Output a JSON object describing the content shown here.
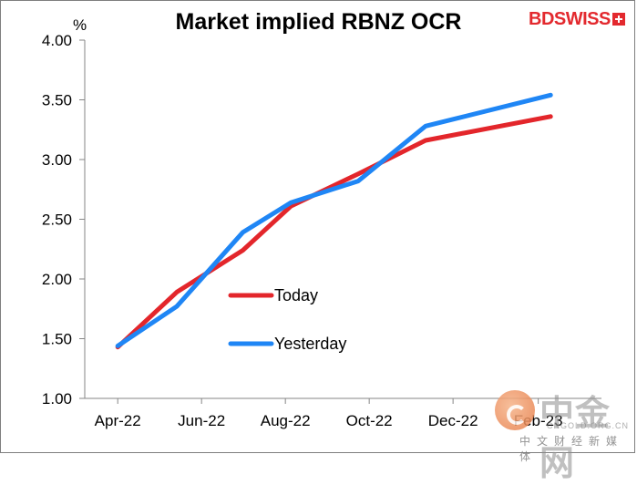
{
  "chart_data": {
    "type": "line",
    "title": "Market implied RBNZ OCR",
    "ylabel": "%",
    "xlabel": "",
    "ylim": [
      1.0,
      4.0
    ],
    "yticks": [
      "1.00",
      "1.50",
      "2.00",
      "2.50",
      "3.00",
      "3.50",
      "4.00"
    ],
    "yticks_values": [
      1.0,
      1.5,
      2.0,
      2.5,
      3.0,
      3.5,
      4.0
    ],
    "x_range": [
      "2022-03-20",
      "2023-03-31"
    ],
    "xticks": [
      {
        "date": "2022-04-13",
        "label": "Apr-22"
      },
      {
        "date": "2022-06-13",
        "label": "Jun-22"
      },
      {
        "date": "2022-08-13",
        "label": "Aug-22"
      },
      {
        "date": "2022-10-13",
        "label": "Oct-22"
      },
      {
        "date": "2022-12-13",
        "label": "Dec-22"
      },
      {
        "date": "2023-02-13",
        "label": "Feb-23"
      }
    ],
    "grid": false,
    "legend_position": "center",
    "series": [
      {
        "name": "Today",
        "color": "#e3262b",
        "points": [
          {
            "x": "2022-04-13",
            "y": 1.43
          },
          {
            "x": "2022-05-26",
            "y": 1.89
          },
          {
            "x": "2022-07-13",
            "y": 2.24
          },
          {
            "x": "2022-08-17",
            "y": 2.61
          },
          {
            "x": "2022-10-05",
            "y": 2.88
          },
          {
            "x": "2022-11-23",
            "y": 3.16
          },
          {
            "x": "2023-02-22",
            "y": 3.36
          }
        ]
      },
      {
        "name": "Yesterday",
        "color": "#1f86f5",
        "points": [
          {
            "x": "2022-04-13",
            "y": 1.44
          },
          {
            "x": "2022-05-26",
            "y": 1.77
          },
          {
            "x": "2022-07-13",
            "y": 2.39
          },
          {
            "x": "2022-08-17",
            "y": 2.64
          },
          {
            "x": "2022-10-05",
            "y": 2.82
          },
          {
            "x": "2022-11-23",
            "y": 3.28
          },
          {
            "x": "2023-02-22",
            "y": 3.54
          }
        ]
      }
    ]
  },
  "brand": {
    "logo_bd": "BD",
    "logo_swiss": "SWISS"
  },
  "watermark": {
    "cn": "中金网",
    "en": "CNGOLD.ORG.CN",
    "sub": "中文财经新媒体"
  }
}
